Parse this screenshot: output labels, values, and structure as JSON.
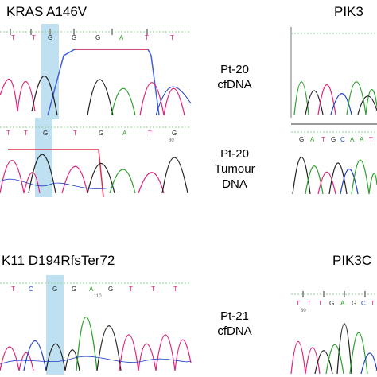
{
  "panels": {
    "kras": {
      "title": "KRAS A146V",
      "top_bases": [
        "T",
        "T",
        "G",
        "G",
        "G",
        "A",
        "T",
        "T"
      ],
      "top_ruler": "",
      "bottom_bases": [
        "T",
        "T",
        "G",
        "T",
        "G",
        "A",
        "T",
        "G"
      ],
      "bottom_ruler": "80"
    },
    "stk11": {
      "title": "K11 D194RfsTer72",
      "bases": [
        "T",
        "C",
        "G",
        "G",
        "A",
        "G",
        "T",
        "T",
        "T"
      ],
      "ruler": "110"
    },
    "pik3_top": {
      "title": "PIK3",
      "bases": [
        "G",
        "A",
        "T",
        "G",
        "C",
        "A",
        "A",
        "T"
      ]
    },
    "pik3_bottom": {
      "title": "PIK3C",
      "bases": [
        "T",
        "T",
        "T",
        "G",
        "A",
        "G",
        "C",
        "T"
      ],
      "ruler": "80"
    }
  },
  "labels": {
    "pt20_cfdna": [
      "Pt-20",
      "cfDNA"
    ],
    "pt20_tumour": [
      "Pt-20",
      "Tumour",
      "DNA"
    ],
    "pt21_cfdna": [
      "Pt-21",
      "cfDNA"
    ]
  },
  "colors": {
    "A": "#2ca02c",
    "C": "#1f3fbf",
    "G": "#222222",
    "T": "#e0207a",
    "highlight": "#bfe0f0",
    "line_red": "#e03050",
    "line_blue": "#4060e0"
  }
}
